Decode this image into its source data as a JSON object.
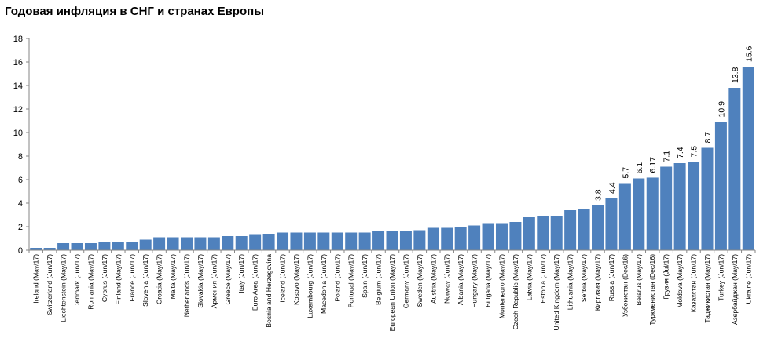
{
  "chart_data": {
    "type": "bar",
    "title": "Годовая инфляция в СНГ и странах Европы",
    "xlabel": "",
    "ylabel": "",
    "ylim": [
      0,
      18
    ],
    "yticks": [
      0,
      2,
      4,
      6,
      8,
      10,
      12,
      14,
      16,
      18
    ],
    "grid": false,
    "legend": "none",
    "colors": {
      "bar": "#4F81BD",
      "highlight": "#FFC000",
      "axis": "#868686"
    },
    "highlight_index": 56,
    "categories": [
      "Ireland (May/17)",
      "Switzerland (Jun/17)",
      "Liechtenstein (May/17)",
      "Denmark (Jun/17)",
      "Romania (May/17)",
      "Cyprus (Jun/17)",
      "Finland (May/17)",
      "France (Jun/17)",
      "Slovenia (Jun/17)",
      "Croatia (May/17)",
      "Malta (May/17)",
      "Netherlands (Jun/17)",
      "Slovakia (May/17)",
      "Армения (Jun/17)",
      "Greece (May/17)",
      "Italy (Jun/17)",
      "Euro Area (Jun/17)",
      "Bosnia and Herzegovina",
      "Iceland (Jun/17)",
      "Kosovo (May/17)",
      "Luxembourg (Jun/17)",
      "Macedonia (Jun/17)",
      "Poland (Jun/17)",
      "Portugal (May/17)",
      "Spain (Jun/17)",
      "Belgium (Jun/17)",
      "European Union (May/17)",
      "Germany (Jun/17)",
      "Sweden (May/17)",
      "Austria (May/17)",
      "Norway (Jun/17)",
      "Albania (May/17)",
      "Hungary (May/17)",
      "Bulgaria (May/17)",
      "Montenegro (May/17)",
      "Czech Republic (May/17)",
      "Latvia (May/17)",
      "Estonia (Jun/17)",
      "United Kingdom (May/17)",
      "Lithuania (May/17)",
      "Serbia (May/17)",
      "Киргизия (May/17)",
      "Russia (Jun/17)",
      "Узбекистан (Dec/16)",
      "Belarus (May/17)",
      "Туркменистан (Dec/16)",
      "Грузия (Jul/17)",
      "Moldova (May/17)",
      "Казахстан (Jun/17)",
      "Таджикистан (May/17)",
      "Turkey (Jun/17)",
      "Азербайджан (May/17)",
      "Ukraine (Jun/17)"
    ],
    "values": [
      0.2,
      0.2,
      0.6,
      0.6,
      0.6,
      0.7,
      0.7,
      0.7,
      0.9,
      1.1,
      1.1,
      1.1,
      1.1,
      1.1,
      1.2,
      1.2,
      1.3,
      1.4,
      1.5,
      1.5,
      1.5,
      1.5,
      1.5,
      1.5,
      1.5,
      1.6,
      1.6,
      1.6,
      1.7,
      1.9,
      1.9,
      2.0,
      2.1,
      2.3,
      2.3,
      2.4,
      2.8,
      2.9,
      2.9,
      3.4,
      3.5,
      3.8,
      4.4,
      5.7,
      6.1,
      6.17,
      7.1,
      7.4,
      7.5,
      8.7,
      10.9,
      13.8,
      15.6
    ],
    "data_labels": [
      null,
      null,
      null,
      null,
      null,
      null,
      null,
      null,
      null,
      null,
      null,
      null,
      null,
      null,
      null,
      null,
      null,
      null,
      null,
      null,
      null,
      null,
      null,
      null,
      null,
      null,
      null,
      null,
      null,
      null,
      null,
      null,
      null,
      null,
      null,
      null,
      null,
      null,
      null,
      null,
      null,
      "3.8",
      "4.4",
      "5.7",
      "6.1",
      "6.17",
      "7.1",
      "7.4",
      "7.5",
      "8.7",
      "10.9",
      "13.8",
      "15.6"
    ]
  }
}
